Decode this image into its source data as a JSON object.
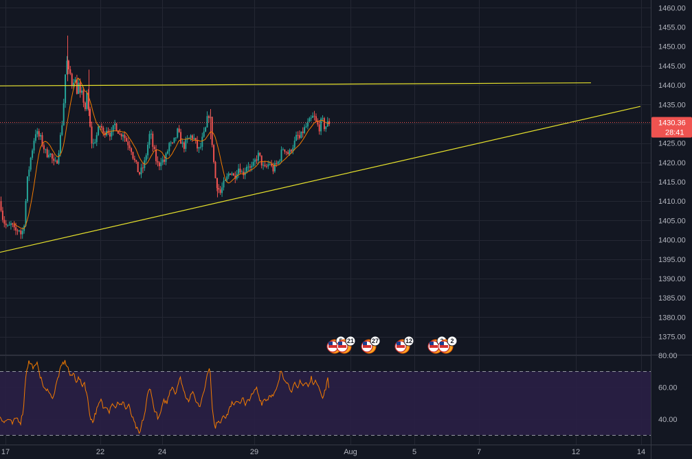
{
  "colors": {
    "background": "#131722",
    "grid": "#242733",
    "up": "#26a69a",
    "down": "#ef5350",
    "ma": "#f57c00",
    "trendline": "#e8e32c",
    "rsi_line": "#f57c00",
    "rsi_band": "#2a1f45",
    "price_tag": "#ef5350",
    "axis_text": "#b2b5be"
  },
  "chart_data": [
    {
      "type": "candlestick",
      "title": "",
      "x_ticks": [
        "17",
        "22",
        "24",
        "29",
        "Aug",
        "5",
        "7",
        "12",
        "14"
      ],
      "y_ticks": [
        1375,
        1380,
        1385,
        1390,
        1395,
        1400,
        1405,
        1410,
        1415,
        1420,
        1425,
        1430,
        1435,
        1440,
        1445,
        1450,
        1455,
        1460
      ],
      "y_tick_labels": [
        "1375.00",
        "1380.00",
        "1385.00",
        "1390.00",
        "1395.00",
        "1400.00",
        "1405.00",
        "1410.00",
        "1415.00",
        "1420.00",
        "1425.00",
        "1430.00",
        "1435.00",
        "1440.00",
        "1445.00",
        "1450.00",
        "1455.00",
        "1460.00"
      ],
      "ylim": [
        1370.5,
        1462
      ],
      "last_price": 1430.36,
      "last_price_label": "1430.36",
      "countdown_label": "28:41",
      "price_path": [
        [
          0,
          1410
        ],
        [
          3,
          1406
        ],
        [
          7,
          1404
        ],
        [
          11,
          1403
        ],
        [
          16,
          1404
        ],
        [
          21,
          1402
        ],
        [
          27,
          1403
        ],
        [
          31,
          1401
        ],
        [
          35,
          1405
        ],
        [
          39,
          1415
        ],
        [
          43,
          1420
        ],
        [
          47,
          1424
        ],
        [
          51,
          1428
        ],
        [
          55,
          1427
        ],
        [
          59,
          1426
        ],
        [
          63,
          1424
        ],
        [
          67,
          1422
        ],
        [
          71,
          1423
        ],
        [
          75,
          1421
        ],
        [
          79,
          1419
        ],
        [
          83,
          1421
        ],
        [
          87,
          1426
        ],
        [
          91,
          1432
        ],
        [
          93,
          1438
        ],
        [
          95,
          1444
        ],
        [
          97,
          1446
        ],
        [
          99,
          1443
        ],
        [
          101,
          1444
        ],
        [
          103,
          1441
        ],
        [
          105,
          1440
        ],
        [
          107,
          1442
        ],
        [
          109,
          1441
        ],
        [
          111,
          1438
        ],
        [
          113,
          1441
        ],
        [
          115,
          1439
        ],
        [
          117,
          1436
        ],
        [
          119,
          1438
        ],
        [
          121,
          1436
        ],
        [
          123,
          1433
        ],
        [
          125,
          1438
        ],
        [
          127,
          1436
        ],
        [
          129,
          1432
        ],
        [
          131,
          1428
        ],
        [
          134,
          1424
        ],
        [
          138,
          1426
        ],
        [
          142,
          1428
        ],
        [
          146,
          1430
        ],
        [
          150,
          1427
        ],
        [
          154,
          1429
        ],
        [
          158,
          1428
        ],
        [
          162,
          1427
        ],
        [
          166,
          1430
        ],
        [
          170,
          1429
        ],
        [
          174,
          1427
        ],
        [
          178,
          1428
        ],
        [
          182,
          1426
        ],
        [
          186,
          1425
        ],
        [
          190,
          1424
        ],
        [
          194,
          1421
        ],
        [
          198,
          1419
        ],
        [
          202,
          1417
        ],
        [
          206,
          1418
        ],
        [
          210,
          1420
        ],
        [
          214,
          1424
        ],
        [
          218,
          1428
        ],
        [
          222,
          1424
        ],
        [
          226,
          1421
        ],
        [
          230,
          1419
        ],
        [
          234,
          1421
        ],
        [
          238,
          1420
        ],
        [
          242,
          1422
        ],
        [
          246,
          1425
        ],
        [
          250,
          1424
        ],
        [
          254,
          1426
        ],
        [
          258,
          1428
        ],
        [
          262,
          1426
        ],
        [
          266,
          1424
        ],
        [
          270,
          1425
        ],
        [
          274,
          1426
        ],
        [
          278,
          1427
        ],
        [
          282,
          1426
        ],
        [
          286,
          1424
        ],
        [
          290,
          1423
        ],
        [
          294,
          1426
        ],
        [
          298,
          1428
        ],
        [
          302,
          1432
        ],
        [
          305,
          1433
        ],
        [
          307,
          1428
        ],
        [
          310,
          1421
        ],
        [
          313,
          1416
        ],
        [
          316,
          1414
        ],
        [
          320,
          1412
        ],
        [
          324,
          1414
        ],
        [
          328,
          1415
        ],
        [
          332,
          1417
        ],
        [
          336,
          1418
        ],
        [
          340,
          1416
        ],
        [
          344,
          1418
        ],
        [
          348,
          1419
        ],
        [
          352,
          1417
        ],
        [
          356,
          1418
        ],
        [
          360,
          1420
        ],
        [
          364,
          1418
        ],
        [
          368,
          1419
        ],
        [
          372,
          1421
        ],
        [
          376,
          1422
        ],
        [
          380,
          1420
        ],
        [
          384,
          1418
        ],
        [
          388,
          1419
        ],
        [
          392,
          1420
        ],
        [
          396,
          1418
        ],
        [
          400,
          1419
        ],
        [
          404,
          1420
        ],
        [
          408,
          1422
        ],
        [
          412,
          1424
        ],
        [
          416,
          1423
        ],
        [
          420,
          1422
        ],
        [
          424,
          1424
        ],
        [
          428,
          1425
        ],
        [
          432,
          1427
        ],
        [
          436,
          1426
        ],
        [
          440,
          1428
        ],
        [
          444,
          1429
        ],
        [
          448,
          1430
        ],
        [
          452,
          1431
        ],
        [
          456,
          1432
        ],
        [
          460,
          1430
        ],
        [
          464,
          1429
        ],
        [
          468,
          1431
        ],
        [
          472,
          1429
        ],
        [
          476,
          1430
        ],
        [
          479,
          1430.4
        ]
      ],
      "trendlines": [
        {
          "x1": 0,
          "y1": 1439.8,
          "x2": 860,
          "y2": 1440.6
        },
        {
          "x1": 0,
          "y1": 1396.8,
          "x2": 932,
          "y2": 1434.5
        }
      ],
      "ma_period": 9,
      "events": [
        {
          "label": "5",
          "x": 490
        },
        {
          "label": "21",
          "x": 504
        },
        {
          "label": "27",
          "x": 540
        },
        {
          "label": "12",
          "x": 589
        },
        {
          "label": "2",
          "x": 637
        },
        {
          "label": "2",
          "x": 652
        }
      ]
    },
    {
      "type": "line",
      "title": "",
      "y_ticks": [
        40,
        60,
        80
      ],
      "y_tick_labels": [
        "40.00",
        "60.00",
        "80.00"
      ],
      "ylim": [
        24,
        80
      ],
      "band": [
        30,
        70
      ],
      "rsi_path": [
        [
          0,
          42
        ],
        [
          6,
          38
        ],
        [
          12,
          40
        ],
        [
          18,
          37
        ],
        [
          24,
          41
        ],
        [
          30,
          38
        ],
        [
          34,
          46
        ],
        [
          38,
          70
        ],
        [
          42,
          76
        ],
        [
          46,
          74
        ],
        [
          50,
          72
        ],
        [
          55,
          75
        ],
        [
          59,
          66
        ],
        [
          63,
          61
        ],
        [
          67,
          57
        ],
        [
          71,
          59
        ],
        [
          75,
          53
        ],
        [
          79,
          56
        ],
        [
          83,
          64
        ],
        [
          87,
          70
        ],
        [
          91,
          75
        ],
        [
          95,
          76
        ],
        [
          99,
          72
        ],
        [
          103,
          66
        ],
        [
          107,
          69
        ],
        [
          111,
          64
        ],
        [
          115,
          66
        ],
        [
          119,
          61
        ],
        [
          123,
          63
        ],
        [
          127,
          54
        ],
        [
          131,
          42
        ],
        [
          135,
          38
        ],
        [
          139,
          44
        ],
        [
          143,
          48
        ],
        [
          147,
          52
        ],
        [
          151,
          46
        ],
        [
          155,
          49
        ],
        [
          159,
          45
        ],
        [
          163,
          51
        ],
        [
          167,
          47
        ],
        [
          171,
          50
        ],
        [
          175,
          48
        ],
        [
          179,
          52
        ],
        [
          183,
          46
        ],
        [
          187,
          49
        ],
        [
          191,
          43
        ],
        [
          195,
          38
        ],
        [
          199,
          34
        ],
        [
          203,
          30
        ],
        [
          207,
          38
        ],
        [
          211,
          44
        ],
        [
          215,
          56
        ],
        [
          219,
          60
        ],
        [
          223,
          48
        ],
        [
          227,
          44
        ],
        [
          231,
          40
        ],
        [
          235,
          46
        ],
        [
          239,
          52
        ],
        [
          243,
          50
        ],
        [
          247,
          58
        ],
        [
          251,
          61
        ],
        [
          255,
          56
        ],
        [
          259,
          62
        ],
        [
          263,
          66
        ],
        [
          267,
          58
        ],
        [
          271,
          54
        ],
        [
          275,
          52
        ],
        [
          279,
          57
        ],
        [
          283,
          54
        ],
        [
          287,
          50
        ],
        [
          291,
          48
        ],
        [
          295,
          56
        ],
        [
          299,
          62
        ],
        [
          303,
          71
        ],
        [
          306,
          70
        ],
        [
          309,
          46
        ],
        [
          313,
          33
        ],
        [
          317,
          40
        ],
        [
          321,
          38
        ],
        [
          325,
          44
        ],
        [
          329,
          40
        ],
        [
          333,
          46
        ],
        [
          337,
          50
        ],
        [
          341,
          48
        ],
        [
          345,
          52
        ],
        [
          349,
          50
        ],
        [
          353,
          54
        ],
        [
          357,
          48
        ],
        [
          361,
          52
        ],
        [
          365,
          54
        ],
        [
          369,
          56
        ],
        [
          373,
          60
        ],
        [
          377,
          54
        ],
        [
          381,
          50
        ],
        [
          385,
          53
        ],
        [
          389,
          52
        ],
        [
          393,
          56
        ],
        [
          397,
          54
        ],
        [
          401,
          57
        ],
        [
          405,
          62
        ],
        [
          409,
          71
        ],
        [
          413,
          66
        ],
        [
          417,
          64
        ],
        [
          421,
          60
        ],
        [
          425,
          58
        ],
        [
          429,
          62
        ],
        [
          433,
          58
        ],
        [
          437,
          65
        ],
        [
          441,
          61
        ],
        [
          445,
          63
        ],
        [
          449,
          60
        ],
        [
          453,
          66
        ],
        [
          457,
          62
        ],
        [
          461,
          64
        ],
        [
          465,
          60
        ],
        [
          469,
          52
        ],
        [
          473,
          58
        ],
        [
          477,
          65
        ],
        [
          479,
          58
        ]
      ]
    }
  ]
}
